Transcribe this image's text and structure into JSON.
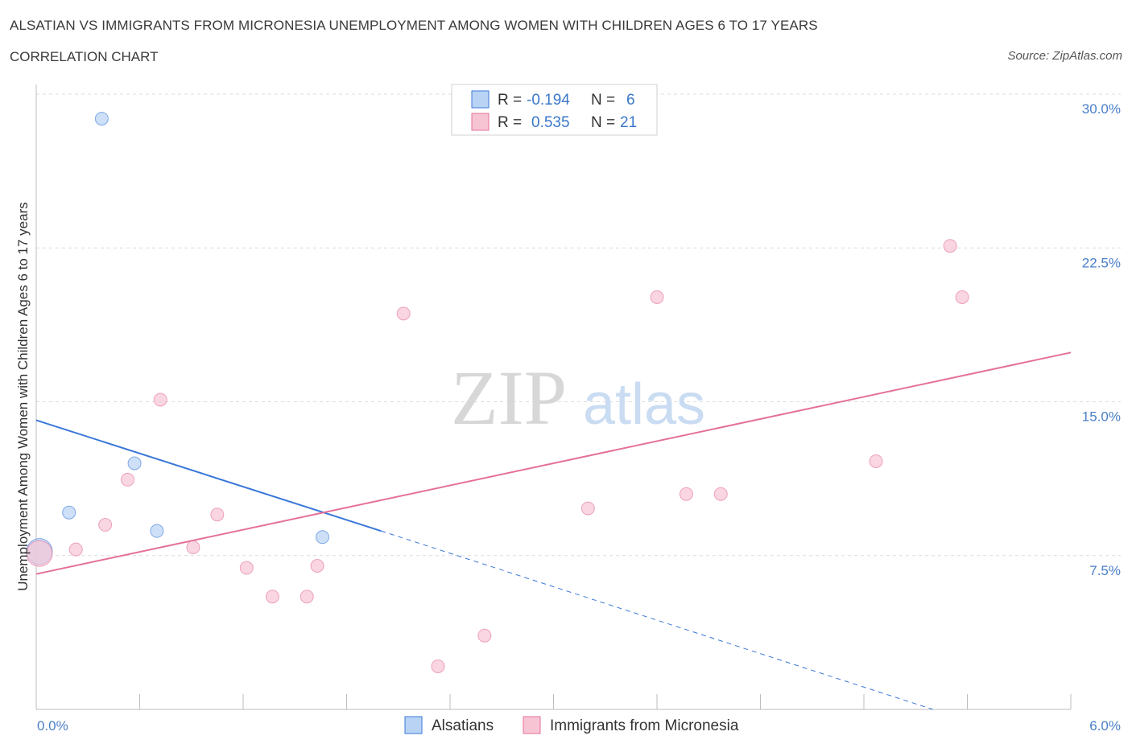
{
  "title": "ALSATIAN VS IMMIGRANTS FROM MICRONESIA UNEMPLOYMENT AMONG WOMEN WITH CHILDREN AGES 6 TO 17 YEARS",
  "subtitle": "CORRELATION CHART",
  "source": "Source: ZipAtlas.com",
  "watermark": {
    "zip": "ZIP",
    "atlas": "atlas"
  },
  "colors": {
    "blue": "#3a78d8",
    "pink": "#e57099",
    "blue_fill": "#b9d3f5",
    "pink_fill": "#f7c4d4",
    "tick_label": "#4a7fc8"
  },
  "legend_top": {
    "rows": [
      {
        "r_label": "R =",
        "r_value": "-0.194",
        "n_label": "N =",
        "n_value": "6"
      },
      {
        "r_label": "R =",
        "r_value": "0.535",
        "n_label": "N =",
        "n_value": "21"
      }
    ]
  },
  "chart_data": {
    "type": "scatter",
    "xlabel": "",
    "ylabel": "Unemployment Among Women with Children Ages 6 to 17 years",
    "xlim": [
      0,
      6
    ],
    "ylim": [
      0,
      30
    ],
    "x_tick_labels": [
      "0.0%",
      "6.0%"
    ],
    "y_ticks": [
      7.5,
      15.0,
      22.5,
      30.0
    ],
    "y_tick_labels": [
      "7.5%",
      "15.0%",
      "22.5%",
      "30.0%"
    ],
    "grid": true,
    "series": [
      {
        "name": "Alsatians",
        "points": [
          {
            "x": 0.0,
            "y": 7.7,
            "large": true
          },
          {
            "x": 0.19,
            "y": 9.6
          },
          {
            "x": 0.38,
            "y": 28.8
          },
          {
            "x": 0.57,
            "y": 12.0
          },
          {
            "x": 0.7,
            "y": 8.7
          },
          {
            "x": 1.66,
            "y": 8.4
          }
        ],
        "trend": {
          "x0": 0.0,
          "y0": 14.1,
          "x1": 2.0,
          "y1": 8.7,
          "dash_to_x": 5.2,
          "dash_to_y": 0.0
        }
      },
      {
        "name": "Immigrants from Micronesia",
        "points": [
          {
            "x": 0.0,
            "y": 7.6,
            "large": true
          },
          {
            "x": 0.23,
            "y": 7.8
          },
          {
            "x": 0.4,
            "y": 9.0
          },
          {
            "x": 0.53,
            "y": 11.2
          },
          {
            "x": 0.72,
            "y": 15.1
          },
          {
            "x": 0.91,
            "y": 7.9
          },
          {
            "x": 1.05,
            "y": 9.5
          },
          {
            "x": 1.22,
            "y": 6.9
          },
          {
            "x": 1.37,
            "y": 5.5
          },
          {
            "x": 1.57,
            "y": 5.5
          },
          {
            "x": 1.63,
            "y": 7.0
          },
          {
            "x": 2.13,
            "y": 19.3
          },
          {
            "x": 2.33,
            "y": 2.1
          },
          {
            "x": 2.6,
            "y": 3.6
          },
          {
            "x": 3.2,
            "y": 9.8
          },
          {
            "x": 3.6,
            "y": 20.1
          },
          {
            "x": 3.77,
            "y": 10.5
          },
          {
            "x": 3.97,
            "y": 10.5
          },
          {
            "x": 4.87,
            "y": 12.1
          },
          {
            "x": 5.3,
            "y": 22.6
          },
          {
            "x": 5.37,
            "y": 20.1
          }
        ],
        "trend": {
          "x0": 0.0,
          "y0": 6.6,
          "x1": 6.0,
          "y1": 17.4
        }
      }
    ]
  }
}
